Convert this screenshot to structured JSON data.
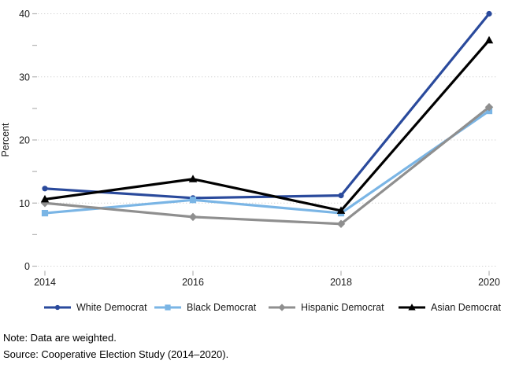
{
  "figure": {
    "notes": {
      "note": "Note: Data are weighted.",
      "source": "Source: Cooperative Election Study (2014–2020)."
    }
  },
  "chart_data": {
    "type": "line",
    "title": "",
    "xlabel": "",
    "ylabel": "Percent",
    "x": [
      2014,
      2016,
      2018,
      2020
    ],
    "ylim": [
      0,
      40
    ],
    "yticks_major": [
      0,
      10,
      20,
      30,
      40
    ],
    "yticks_minor": [
      5,
      15,
      25,
      35
    ],
    "grid": "horizontal-dotted-at-major-ticks",
    "legend_position": "bottom",
    "colors": {
      "white_democrat": "#2a4a9c",
      "black_democrat": "#7ab5e5",
      "hispanic_democrat": "#8f8f8f",
      "asian_democrat": "#000000",
      "gridline": "#d2d2d2",
      "tick": "#b3b3b3",
      "text": "#1a1a1a"
    },
    "series": [
      {
        "name": "White Democrat",
        "marker": "circle",
        "color": "#2a4a9c",
        "values": [
          12.3,
          10.8,
          11.2,
          40.0
        ]
      },
      {
        "name": "Black Democrat",
        "marker": "square",
        "color": "#7ab5e5",
        "values": [
          8.4,
          10.5,
          8.4,
          24.6
        ]
      },
      {
        "name": "Hispanic Democrat",
        "marker": "diamond",
        "color": "#8f8f8f",
        "values": [
          10.0,
          7.8,
          6.7,
          25.2
        ]
      },
      {
        "name": "Asian Democrat",
        "marker": "triangle",
        "color": "#000000",
        "values": [
          10.6,
          13.8,
          8.8,
          35.8
        ]
      }
    ]
  }
}
